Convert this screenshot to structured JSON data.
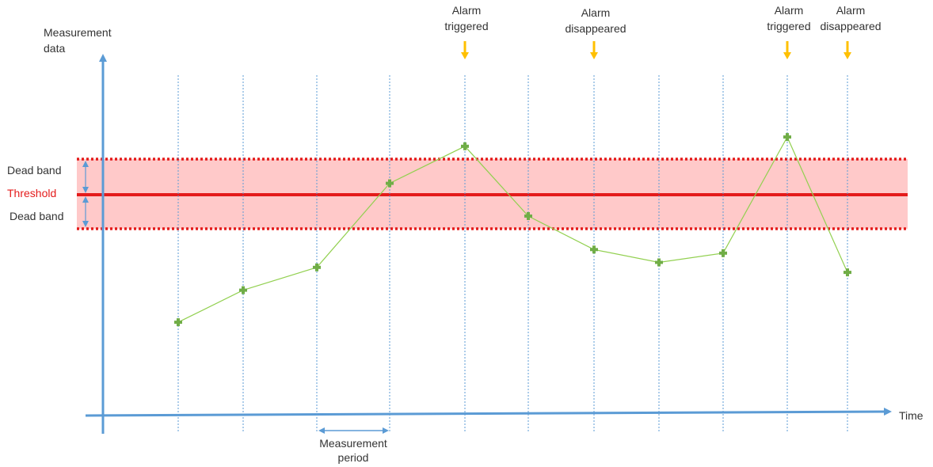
{
  "diagram": {
    "y_axis_label_line1": "Measurement",
    "y_axis_label_line2": "data",
    "x_axis_label": "Time",
    "threshold_label": "Threshold",
    "dead_band_upper_label": "Dead band",
    "dead_band_lower_label": "Dead band",
    "measurement_period_line1": "Measurement",
    "measurement_period_line2": "period",
    "events": [
      {
        "line1": "Alarm",
        "line2": "triggered"
      },
      {
        "line1": "Alarm",
        "line2": "disappeared"
      },
      {
        "line1": "Alarm",
        "line2": "triggered"
      },
      {
        "line1": "Alarm",
        "line2": "disappeared"
      }
    ],
    "measurements": [
      -1.79,
      -1.34,
      -1.02,
      0.16,
      0.68,
      -0.3,
      -0.77,
      -0.95,
      -0.82,
      0.81,
      -1.09
    ],
    "threshold": 0,
    "dead_band": 0.5
  },
  "colors": {
    "axis": "#5b9bd5",
    "threshold": "#e41b1b",
    "dead_band_fill": "#ffc9c9",
    "dead_band_border": "#e41b1b",
    "data_line": "#92d050",
    "data_marker": "#70ad47",
    "alarm_arrow": "#ffc000",
    "gridline": "#5b9bd5",
    "threshold_label": "#e41b1b"
  }
}
